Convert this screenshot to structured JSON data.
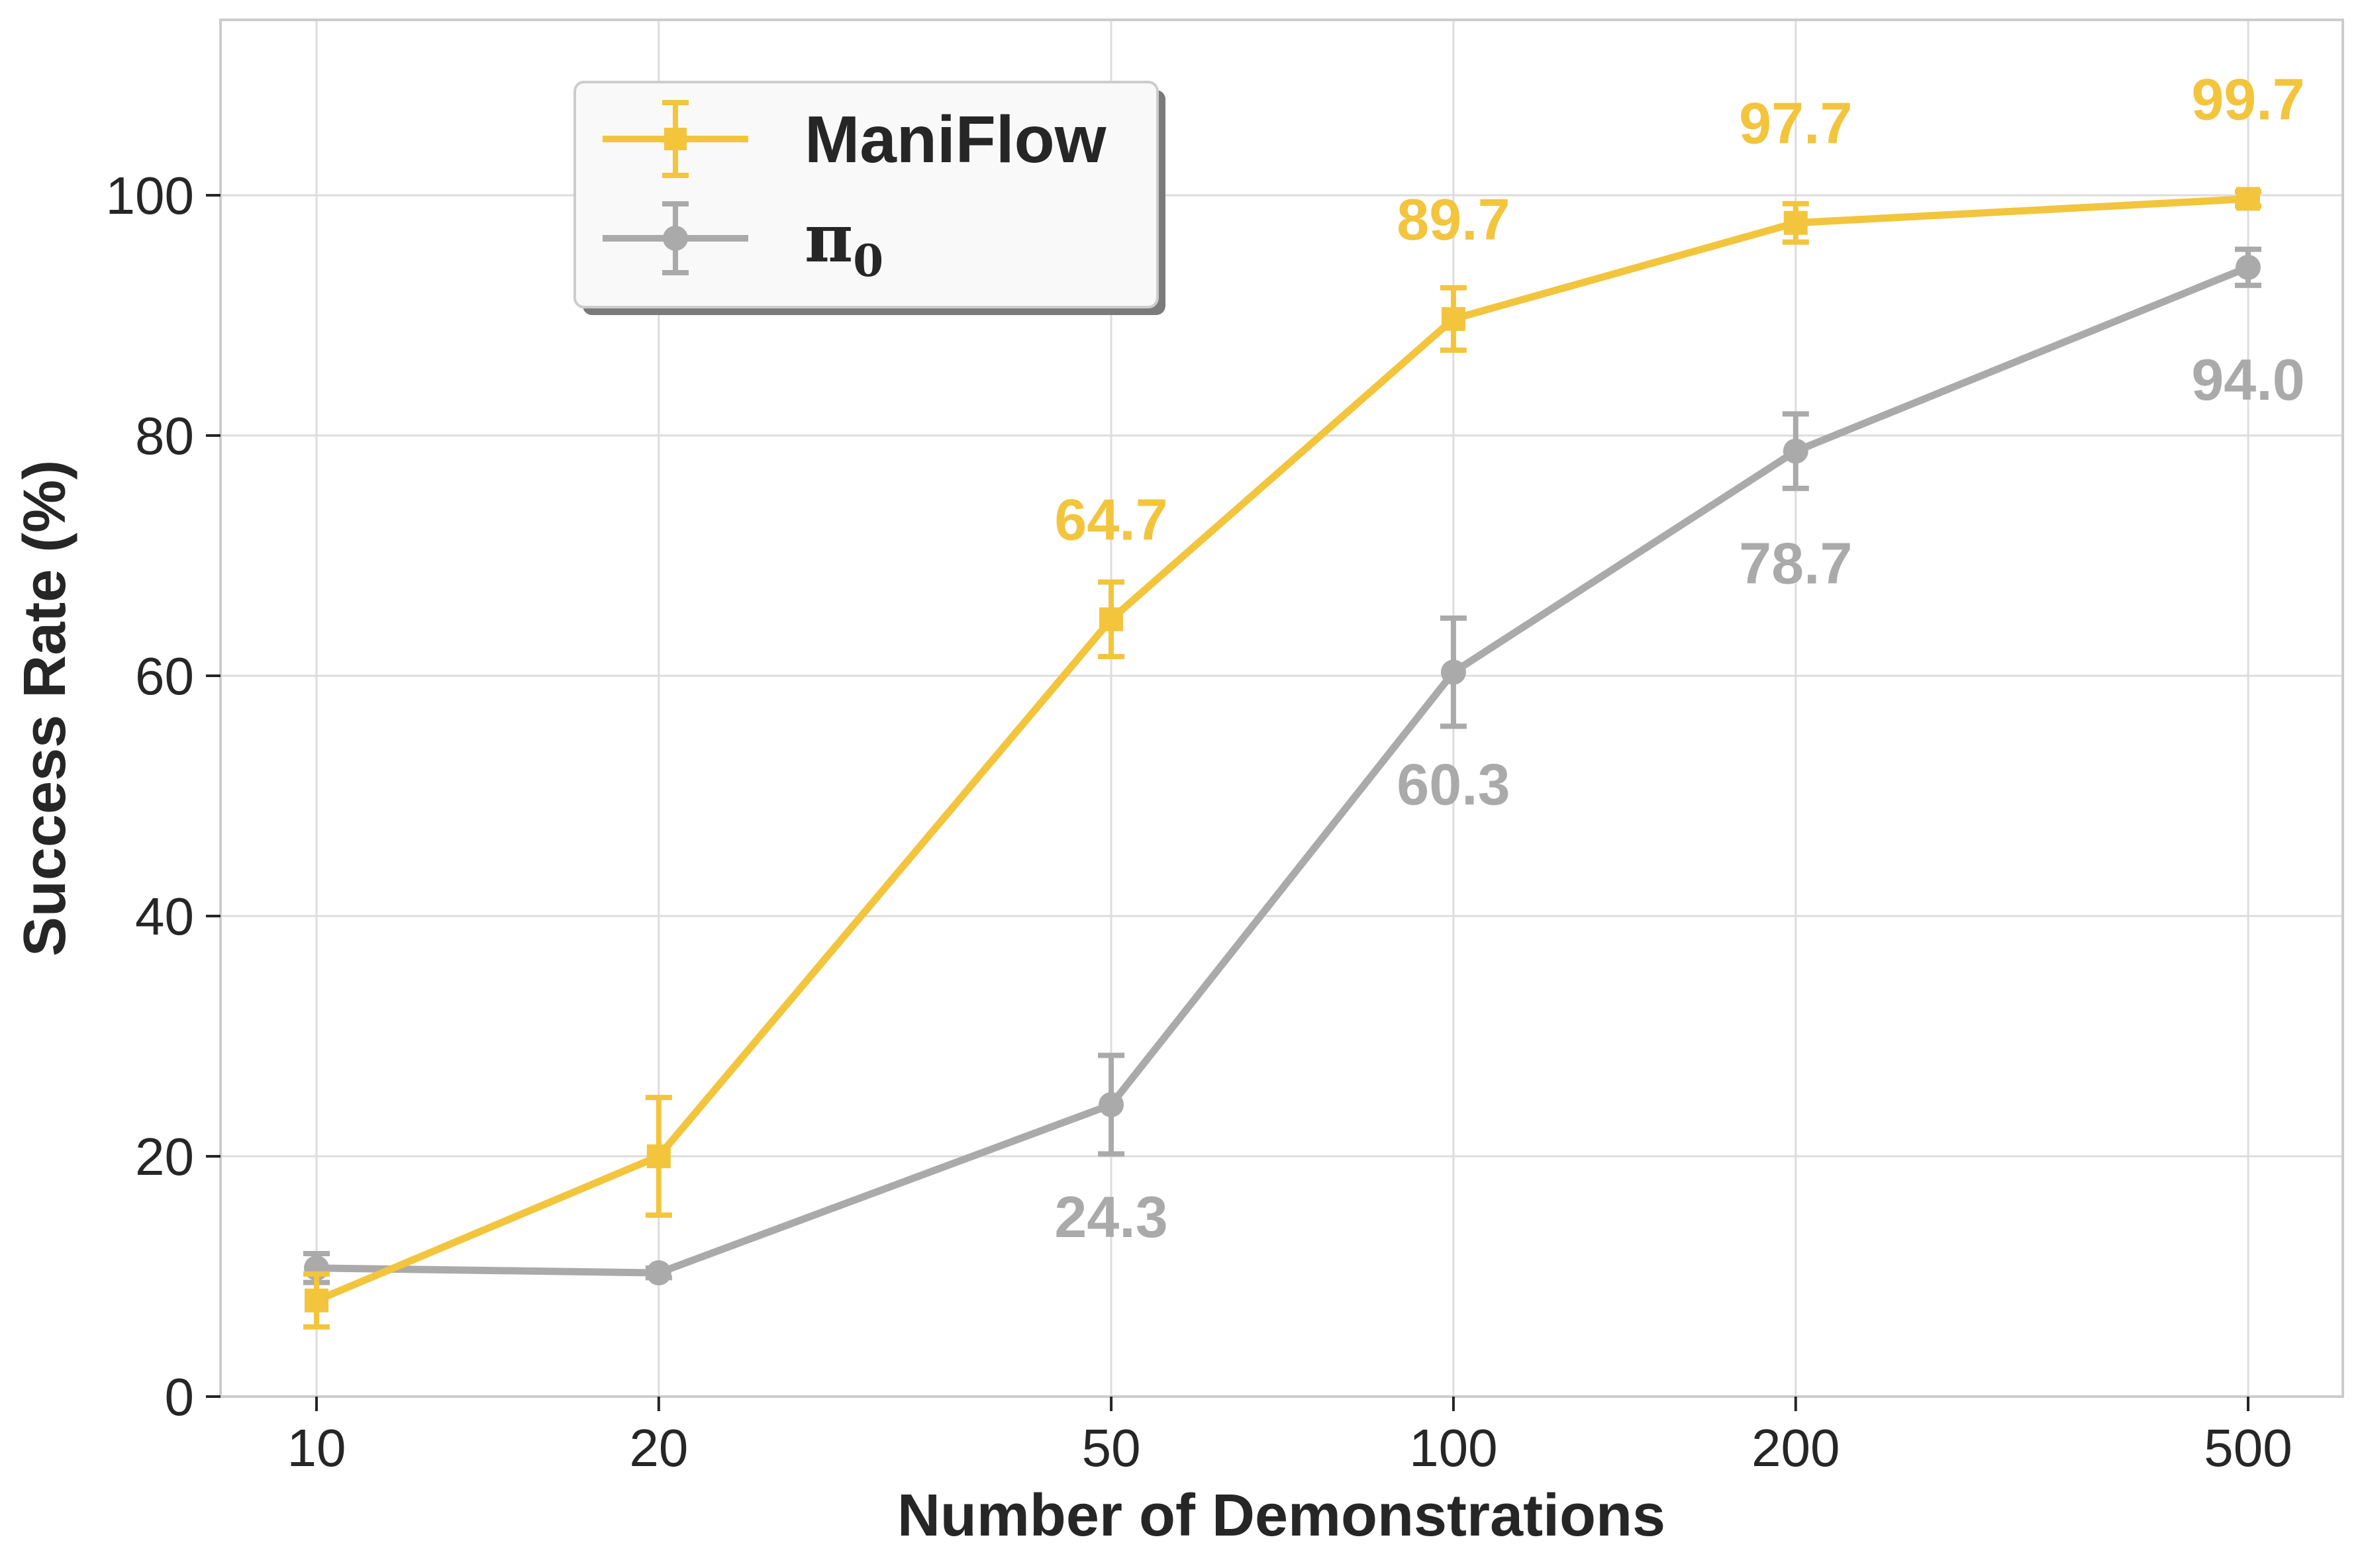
{
  "chart_data": {
    "type": "line",
    "xscale": "log",
    "x": [
      10,
      20,
      50,
      100,
      200,
      500
    ],
    "x_tick_labels": [
      "10",
      "20",
      "50",
      "100",
      "200",
      "500"
    ],
    "xlabel": "Number of Demonstrations",
    "ylabel": "Success Rate (%)",
    "ylim": [
      0,
      115
    ],
    "y_ticks": [
      0,
      20,
      40,
      60,
      80,
      100
    ],
    "grid": true,
    "legend_position": "top-left",
    "series": [
      {
        "name": "ManiFlow",
        "marker": "square",
        "color": "#F2C53D",
        "values": [
          8.0,
          20.0,
          64.7,
          89.7,
          97.7,
          99.7
        ],
        "errors": [
          2.2,
          4.9,
          3.1,
          2.6,
          1.6,
          0.6
        ],
        "labels": [
          null,
          null,
          "64.7",
          "89.7",
          "97.7",
          "99.7"
        ],
        "label_placement": "above"
      },
      {
        "name": "π",
        "name_subscript": "0",
        "marker": "circle",
        "color": "#AAAAAA",
        "values": [
          10.7,
          10.3,
          24.3,
          60.3,
          78.7,
          94.0
        ],
        "errors": [
          1.2,
          0.4,
          4.1,
          4.5,
          3.1,
          1.5
        ],
        "labels": [
          null,
          null,
          "24.3",
          "60.3",
          "78.7",
          "94.0"
        ],
        "label_placement": "below"
      }
    ]
  }
}
